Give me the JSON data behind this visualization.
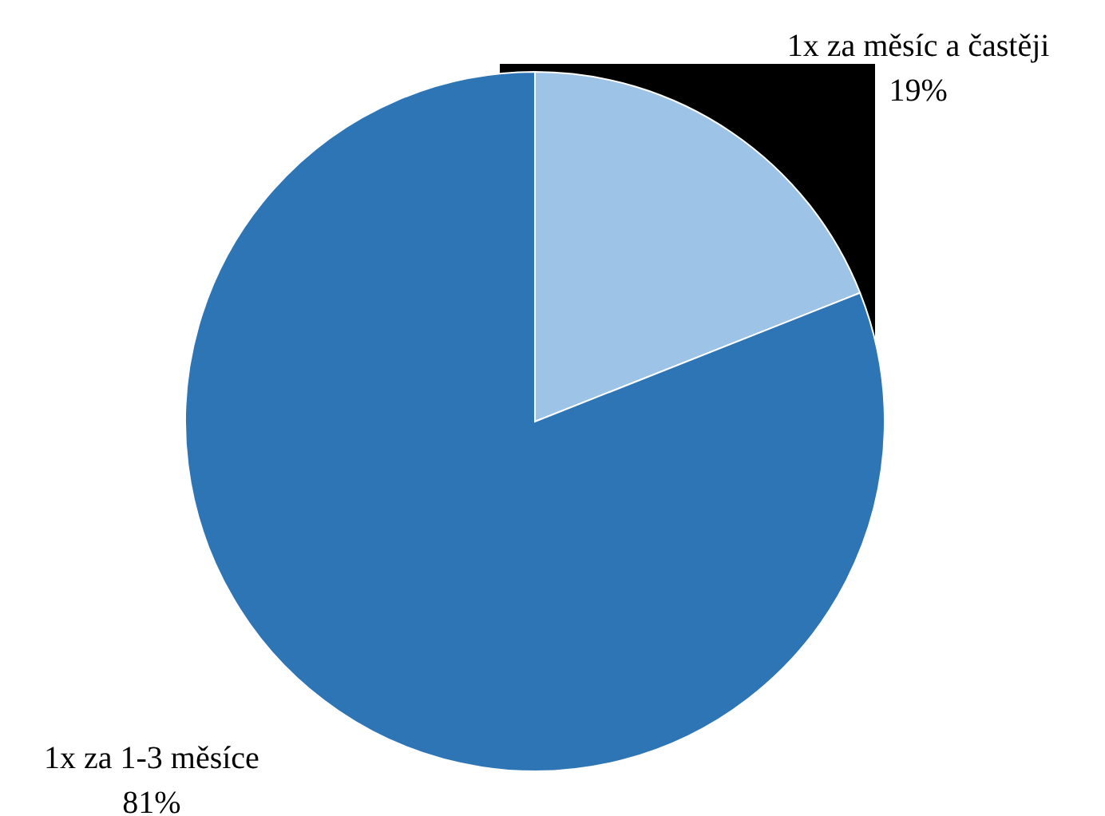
{
  "chart_data": {
    "type": "pie",
    "categories": [
      "1x za měsíc a častěji",
      "1x za 1-3 měsíce"
    ],
    "values": [
      19,
      81
    ],
    "colors": [
      "#9dc3e6",
      "#2e75b6"
    ],
    "value_labels": [
      "19%",
      "81%"
    ]
  }
}
